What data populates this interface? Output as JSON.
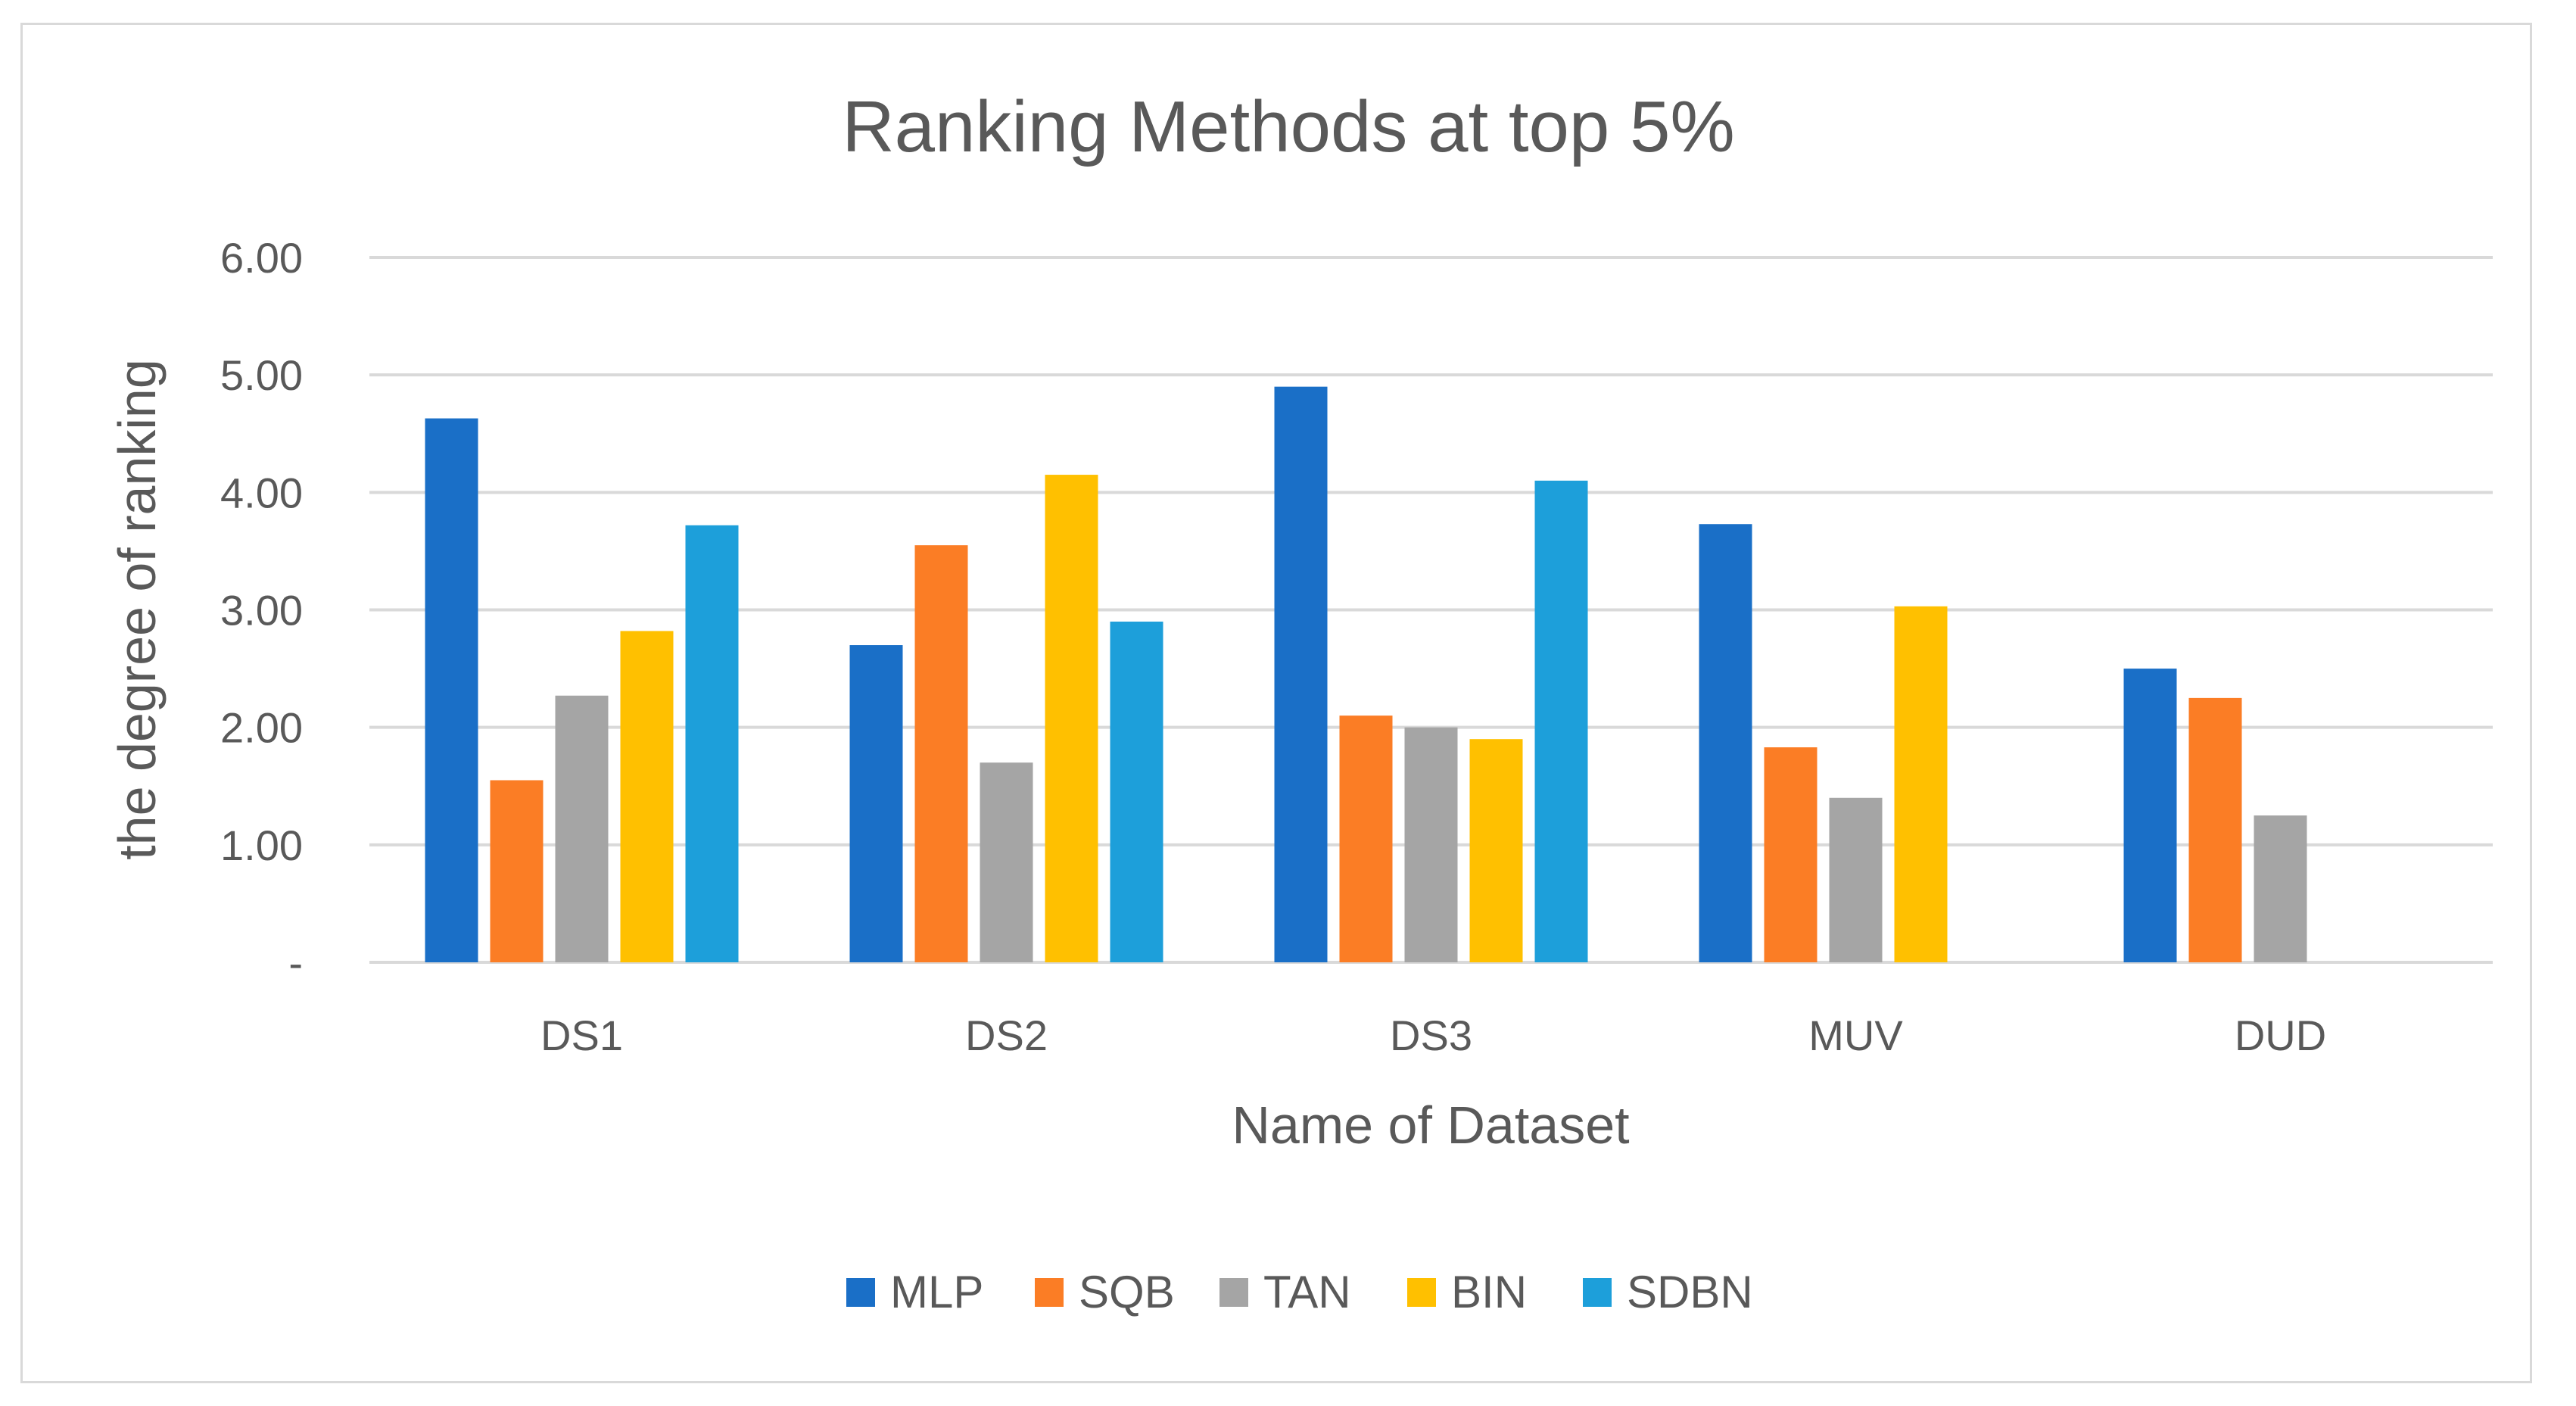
{
  "chart_data": {
    "type": "bar",
    "title": "Ranking Methods at top 5%",
    "xlabel": "Name of Dataset",
    "ylabel": "the degree of ranking",
    "categories": [
      "DS1",
      "DS2",
      "DS3",
      "MUV",
      "DUD"
    ],
    "ylim": [
      0,
      6
    ],
    "yticks": [
      0,
      1,
      2,
      3,
      4,
      5,
      6
    ],
    "ytick_labels": [
      "-",
      "1.00",
      "2.00",
      "3.00",
      "4.00",
      "5.00",
      "6.00"
    ],
    "grid": true,
    "legend_position": "bottom",
    "series": [
      {
        "name": "MLP",
        "color": "#1a6fc7",
        "values": [
          4.63,
          2.7,
          4.9,
          3.73,
          2.5
        ]
      },
      {
        "name": "SQB",
        "color": "#fb7d25",
        "values": [
          1.55,
          3.55,
          2.1,
          1.83,
          2.25
        ]
      },
      {
        "name": "TAN",
        "color": "#a5a5a5",
        "values": [
          2.27,
          1.7,
          2.0,
          1.4,
          1.25
        ]
      },
      {
        "name": "BIN",
        "color": "#ffc000",
        "values": [
          2.82,
          4.15,
          1.9,
          3.03,
          0
        ]
      },
      {
        "name": "SDBN",
        "color": "#1d9fda",
        "values": [
          3.72,
          2.9,
          4.1,
          0,
          0
        ]
      }
    ]
  }
}
